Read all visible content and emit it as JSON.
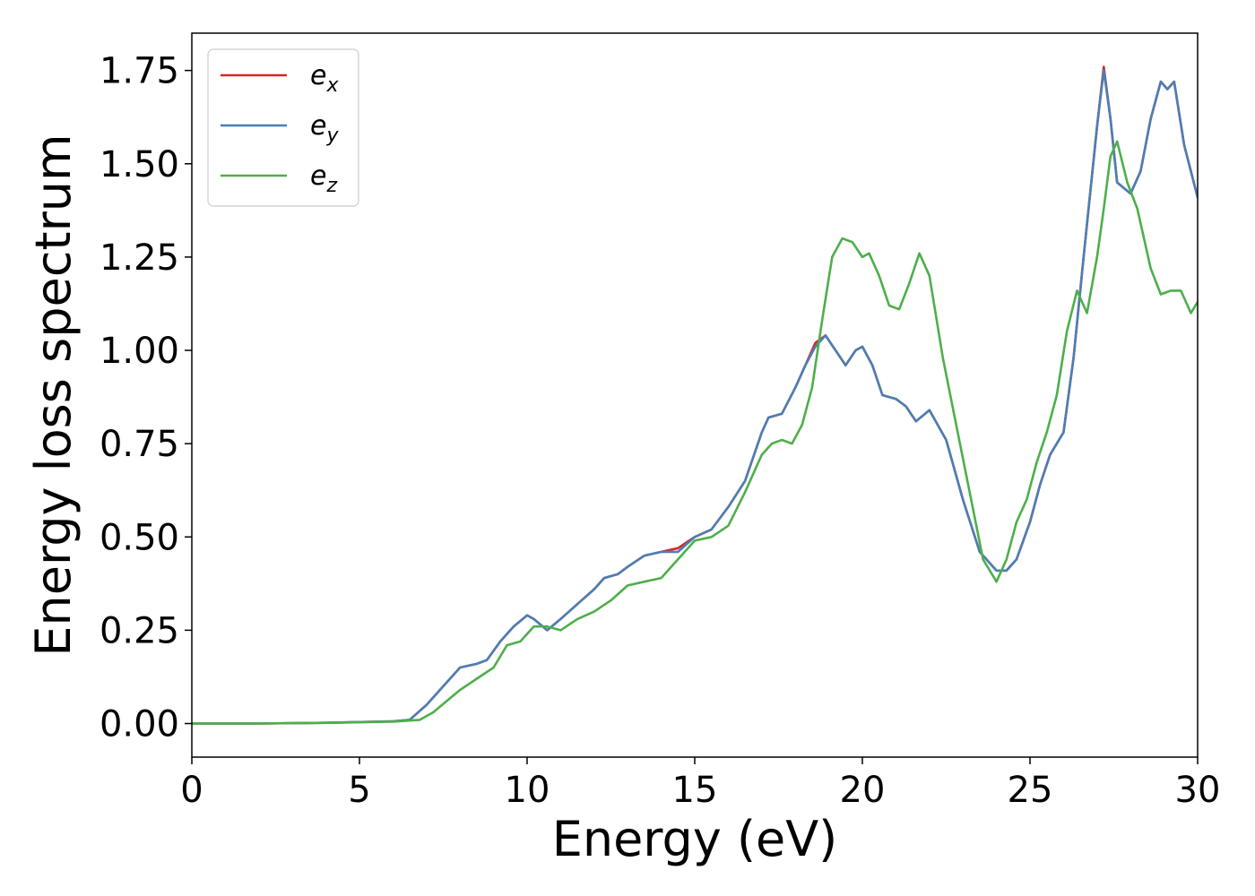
{
  "chart_data": {
    "type": "line",
    "title": "",
    "xlabel": "Energy (eV)",
    "ylabel": "Energy loss spectrum",
    "xlim": [
      0,
      30
    ],
    "ylim": [
      -0.09,
      1.85
    ],
    "xticks": [
      0,
      5,
      10,
      15,
      20,
      25,
      30
    ],
    "xtick_labels": [
      "0",
      "5",
      "10",
      "15",
      "20",
      "25",
      "30"
    ],
    "yticks": [
      0.0,
      0.25,
      0.5,
      0.75,
      1.0,
      1.25,
      1.5,
      1.75
    ],
    "ytick_labels": [
      "0.00",
      "0.25",
      "0.50",
      "0.75",
      "1.00",
      "1.25",
      "1.50",
      "1.75"
    ],
    "grid": false,
    "legend_position": "top-left",
    "series": [
      {
        "name": "e",
        "subscript": "x",
        "color": "#d62728",
        "x": [
          0,
          2,
          4,
          6,
          6.5,
          7,
          7.5,
          8,
          8.5,
          8.8,
          9.2,
          9.6,
          10,
          10.2,
          10.6,
          11,
          11.5,
          12,
          12.3,
          12.7,
          13,
          13.5,
          14,
          14.5,
          15,
          15.5,
          16,
          16.5,
          17,
          17.2,
          17.6,
          18,
          18.3,
          18.6,
          18.9,
          19.2,
          19.5,
          19.8,
          20,
          20.3,
          20.6,
          21,
          21.3,
          21.6,
          22,
          22.5,
          23,
          23.5,
          24,
          24.3,
          24.6,
          25,
          25.3,
          25.6,
          26,
          26.3,
          26.6,
          27,
          27.2,
          27.4,
          27.6,
          28,
          28.3,
          28.6,
          28.9,
          29.1,
          29.3,
          29.6,
          30
        ],
        "y": [
          0.0,
          0.0,
          0.002,
          0.006,
          0.01,
          0.05,
          0.1,
          0.15,
          0.16,
          0.17,
          0.22,
          0.26,
          0.29,
          0.28,
          0.25,
          0.28,
          0.32,
          0.36,
          0.39,
          0.4,
          0.42,
          0.45,
          0.46,
          0.47,
          0.5,
          0.52,
          0.58,
          0.65,
          0.78,
          0.82,
          0.83,
          0.9,
          0.96,
          1.02,
          1.04,
          1.0,
          0.96,
          1.0,
          1.01,
          0.96,
          0.88,
          0.87,
          0.85,
          0.81,
          0.84,
          0.76,
          0.6,
          0.46,
          0.41,
          0.41,
          0.44,
          0.54,
          0.64,
          0.72,
          0.78,
          0.98,
          1.25,
          1.6,
          1.76,
          1.62,
          1.45,
          1.42,
          1.48,
          1.62,
          1.72,
          1.7,
          1.72,
          1.55,
          1.41
        ]
      },
      {
        "name": "e",
        "subscript": "y",
        "color": "#4a7fb5",
        "x": [
          0,
          2,
          4,
          6,
          6.5,
          7,
          7.5,
          8,
          8.5,
          8.8,
          9.2,
          9.6,
          10,
          10.2,
          10.6,
          11,
          11.5,
          12,
          12.3,
          12.7,
          13,
          13.5,
          14,
          14.5,
          15,
          15.5,
          16,
          16.5,
          17,
          17.2,
          17.6,
          18,
          18.3,
          18.6,
          18.9,
          19.2,
          19.5,
          19.8,
          20,
          20.3,
          20.6,
          21,
          21.3,
          21.6,
          22,
          22.5,
          23,
          23.5,
          24,
          24.3,
          24.6,
          25,
          25.3,
          25.6,
          26,
          26.3,
          26.6,
          27,
          27.2,
          27.4,
          27.6,
          28,
          28.3,
          28.6,
          28.9,
          29.1,
          29.3,
          29.6,
          30
        ],
        "y": [
          0.0,
          0.0,
          0.002,
          0.006,
          0.01,
          0.05,
          0.1,
          0.15,
          0.16,
          0.17,
          0.22,
          0.26,
          0.29,
          0.28,
          0.25,
          0.28,
          0.32,
          0.36,
          0.39,
          0.4,
          0.42,
          0.45,
          0.46,
          0.46,
          0.5,
          0.52,
          0.58,
          0.65,
          0.78,
          0.82,
          0.83,
          0.9,
          0.96,
          1.01,
          1.04,
          1.0,
          0.96,
          1.0,
          1.01,
          0.96,
          0.88,
          0.87,
          0.85,
          0.81,
          0.84,
          0.76,
          0.6,
          0.46,
          0.41,
          0.41,
          0.44,
          0.54,
          0.64,
          0.72,
          0.78,
          0.98,
          1.25,
          1.6,
          1.75,
          1.62,
          1.45,
          1.42,
          1.48,
          1.62,
          1.72,
          1.7,
          1.72,
          1.55,
          1.41
        ]
      },
      {
        "name": "e",
        "subscript": "z",
        "color": "#4daf4a",
        "x": [
          0,
          2,
          4,
          6,
          6.8,
          7.2,
          7.6,
          8,
          8.5,
          9,
          9.4,
          9.8,
          10.2,
          10.6,
          11,
          11.5,
          12,
          12.5,
          13,
          13.5,
          14,
          14.5,
          15,
          15.5,
          16,
          16.5,
          17,
          17.3,
          17.6,
          17.9,
          18.2,
          18.5,
          18.8,
          19.1,
          19.4,
          19.7,
          20,
          20.2,
          20.5,
          20.8,
          21.1,
          21.4,
          21.7,
          22,
          22.4,
          22.8,
          23.2,
          23.6,
          24,
          24.3,
          24.6,
          24.9,
          25.2,
          25.5,
          25.8,
          26.1,
          26.4,
          26.7,
          27,
          27.2,
          27.4,
          27.6,
          27.9,
          28.2,
          28.6,
          28.9,
          29.2,
          29.5,
          29.8,
          30
        ],
        "y": [
          0.0,
          0.0,
          0.002,
          0.005,
          0.01,
          0.03,
          0.06,
          0.09,
          0.12,
          0.15,
          0.21,
          0.22,
          0.26,
          0.26,
          0.25,
          0.28,
          0.3,
          0.33,
          0.37,
          0.38,
          0.39,
          0.44,
          0.49,
          0.5,
          0.53,
          0.62,
          0.72,
          0.75,
          0.76,
          0.75,
          0.8,
          0.9,
          1.08,
          1.25,
          1.3,
          1.29,
          1.25,
          1.26,
          1.2,
          1.12,
          1.11,
          1.18,
          1.26,
          1.2,
          0.98,
          0.8,
          0.62,
          0.44,
          0.38,
          0.44,
          0.54,
          0.6,
          0.7,
          0.78,
          0.88,
          1.05,
          1.16,
          1.1,
          1.25,
          1.38,
          1.52,
          1.56,
          1.45,
          1.38,
          1.22,
          1.15,
          1.16,
          1.16,
          1.1,
          1.13
        ]
      }
    ]
  }
}
